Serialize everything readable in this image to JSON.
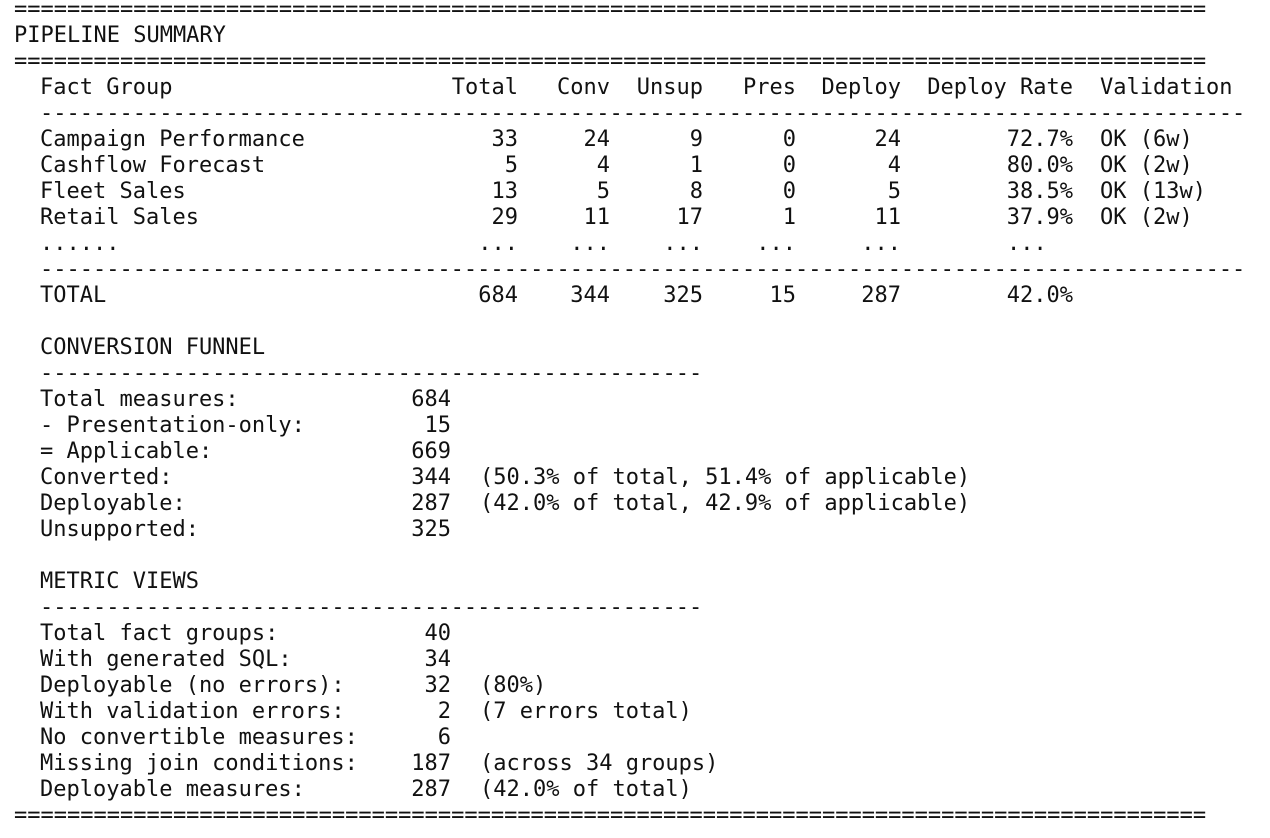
{
  "title": "PIPELINE SUMMARY",
  "rules": {
    "double": "==========================================================================================",
    "table": "-------------------------------------------------------------------------------------------",
    "section": "--------------------------------------------------"
  },
  "table": {
    "columns": [
      "Fact Group",
      "Total",
      "Conv",
      "Unsup",
      "Pres",
      "Deploy",
      "Deploy Rate",
      "Validation"
    ],
    "rows": [
      [
        "Campaign Performance",
        "33",
        "24",
        "9",
        "0",
        "24",
        "72.7%",
        "OK (6w)"
      ],
      [
        "Cashflow Forecast",
        "5",
        "4",
        "1",
        "0",
        "4",
        "80.0%",
        "OK (2w)"
      ],
      [
        "Fleet Sales",
        "13",
        "5",
        "8",
        "0",
        "5",
        "38.5%",
        "OK (13w)"
      ],
      [
        "Retail Sales",
        "29",
        "11",
        "17",
        "1",
        "11",
        "37.9%",
        "OK (2w)"
      ]
    ],
    "ellipsis": [
      "......",
      "...",
      "...",
      "...",
      "...",
      "...",
      "..."
    ],
    "total": [
      "TOTAL",
      "684",
      "344",
      "325",
      "15",
      "287",
      "42.0%"
    ]
  },
  "funnel": {
    "title": "CONVERSION FUNNEL",
    "rows": [
      {
        "label": "Total measures:",
        "value": "684"
      },
      {
        "label": "- Presentation-only:",
        "value": "15"
      },
      {
        "label": "= Applicable:",
        "value": "669"
      },
      {
        "label": "Converted:",
        "value": "344",
        "note": "(50.3% of total, 51.4% of applicable)"
      },
      {
        "label": "Deployable:",
        "value": "287",
        "note": "(42.0% of total, 42.9% of applicable)"
      },
      {
        "label": "Unsupported:",
        "value": "325"
      }
    ]
  },
  "metric_views": {
    "title": "METRIC VIEWS",
    "rows": [
      {
        "label": "Total fact groups:",
        "value": "40"
      },
      {
        "label": "With generated SQL:",
        "value": "34"
      },
      {
        "label": "Deployable (no errors):",
        "value": "32",
        "note": "(80%)"
      },
      {
        "label": "With validation errors:",
        "value": "2",
        "note": "(7 errors total)"
      },
      {
        "label": "No convertible measures:",
        "value": "6"
      },
      {
        "label": "Missing join conditions:",
        "value": "187",
        "note": "(across 34 groups)"
      },
      {
        "label": "Deployable measures:",
        "value": "287",
        "note": "(42.0% of total)"
      }
    ]
  }
}
